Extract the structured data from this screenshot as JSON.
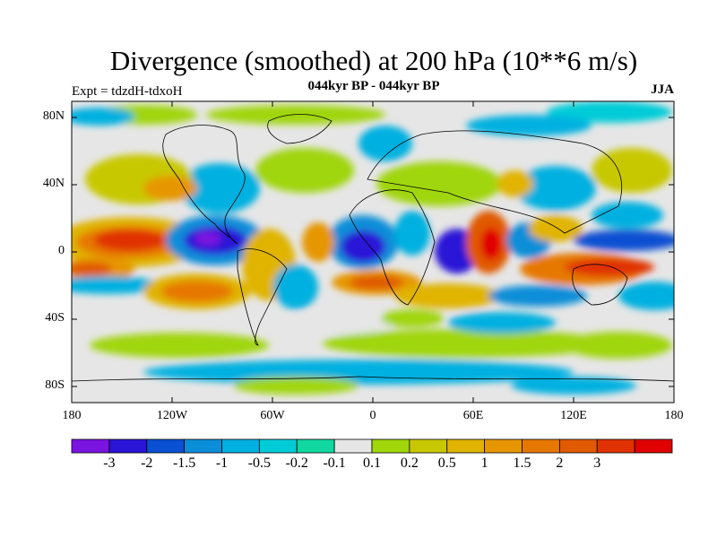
{
  "title": "Divergence (smoothed) at 200 hPa (10**6 m/s)",
  "subtitle": "044kyr BP - 044kyr BP",
  "experiment": "Expt = tdzdH-tdxoH",
  "season": "JJA",
  "latitude_labels": [
    "80N",
    "40N",
    "0",
    "40S",
    "80S"
  ],
  "longitude_labels": [
    "180",
    "120W",
    "60W",
    "0",
    "60E",
    "120E",
    "180"
  ],
  "colorbar": {
    "labels": [
      "-3",
      "-2",
      "-1.5",
      "-1",
      "-0.5",
      "-0.2",
      "-0.1",
      "0.1",
      "0.2",
      "0.5",
      "1",
      "1.5",
      "2",
      "3"
    ],
    "colors": [
      "#7a14e0",
      "#2a14d6",
      "#0a50d2",
      "#0a8ed8",
      "#00b0e0",
      "#00ccd8",
      "#10d8a0",
      "#e6e6e6",
      "#a0d60a",
      "#c8c800",
      "#e0b400",
      "#e69600",
      "#e67800",
      "#e05a00",
      "#e03200",
      "#e00000"
    ]
  }
}
